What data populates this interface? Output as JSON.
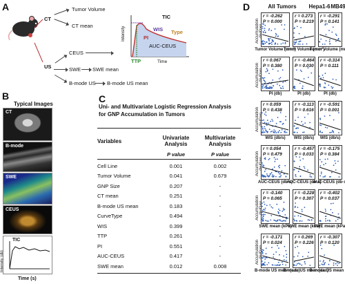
{
  "panels": {
    "a": "A",
    "b": "B",
    "c": "C",
    "d": "D"
  },
  "panel_a": {
    "ct": "CT",
    "us": "US",
    "tumor_volume": "Tumor Volume",
    "ct_mean": "CT mean",
    "ceus": "CEUS",
    "swe": "SWE",
    "swe_mean": "SWE mean",
    "bmode_us": "B-mode US",
    "bmode_us_mean": "B-mode US mean",
    "curve": {
      "tic": "TIC",
      "wis": "WIS",
      "type": "Type",
      "pi": "PI",
      "auc": "AUC-CEUS",
      "ttp": "TTP",
      "intensity": "Intensity",
      "time": "Time"
    }
  },
  "panel_b": {
    "title": "Typical Images",
    "images": [
      "CT",
      "B-mode",
      "SWE",
      "CEUS"
    ],
    "tic_label": "TIC",
    "ylabel": "Intensity (db)",
    "xlabel": "Time (s)"
  },
  "panel_c": {
    "title": "Uni- and Multivariate Logistic Regression Analysis for GNP Accumulation in Tumors",
    "col_variables": "Variables",
    "col_uni": "Univariate Analysis",
    "col_multi": "Multivariate Analysis",
    "pvalue": "P value",
    "rows": [
      {
        "v": "Cell Line",
        "uni": "0.001",
        "multi": "0.002"
      },
      {
        "v": "Tumor Volume",
        "uni": "0.041",
        "multi": "0.679"
      },
      {
        "v": "GNP Size",
        "uni": "0.207",
        "multi": "-"
      },
      {
        "v": "CT mean",
        "uni": "0.251",
        "multi": "-"
      },
      {
        "v": "B-mode US mean",
        "uni": "0.183",
        "multi": "-"
      },
      {
        "v": "CurveType",
        "uni": "0.494",
        "multi": "-"
      },
      {
        "v": "WIS",
        "uni": "0.399",
        "multi": "-"
      },
      {
        "v": "TTP",
        "uni": "0.261",
        "multi": "-"
      },
      {
        "v": "PI",
        "uni": "0.551",
        "multi": "-"
      },
      {
        "v": "AUC-CEUS",
        "uni": "0.417",
        "multi": "-"
      },
      {
        "v": "SWE mean",
        "uni": "0.012",
        "multi": "0.008"
      }
    ]
  },
  "panel_d": {
    "columns": [
      "All Tumors",
      "Hepa1-6",
      "MB49"
    ],
    "ylabel": "Accumulation (%ID/g)",
    "rows": [
      {
        "x": "Tumor Volume (mm³)",
        "stats": [
          [
            "r = -0.262",
            "P = 0.000"
          ],
          [
            "r = 0.273",
            "P = 0.219"
          ],
          [
            "r = -0.291",
            "P = 0.141"
          ]
        ]
      },
      {
        "x": "PI (db)",
        "stats": [
          [
            "r = 0.067",
            "P = 0.380"
          ],
          [
            "r = -0.464",
            "P = 0.030"
          ],
          [
            "r = -0.314",
            "P = 0.111"
          ]
        ]
      },
      {
        "x": "WIS (db/s)",
        "stats": [
          [
            "r = 0.059",
            "P = 0.438"
          ],
          [
            "r = -0.113",
            "P = 0.616"
          ],
          [
            "r = -0.591",
            "P = 0.001"
          ]
        ]
      },
      {
        "x": "AUC-CEUS (db·s)",
        "stats": [
          [
            "r = 0.054",
            "P = 0.479"
          ],
          [
            "r = -0.457",
            "P = 0.033"
          ],
          [
            "r = -0.175",
            "P = 0.384"
          ]
        ]
      },
      {
        "x": "SWE mean (kPa)",
        "stats": [
          [
            "r = -0.140",
            "P = 0.065"
          ],
          [
            "r = -0.228",
            "P = 0.307"
          ],
          [
            "r = -0.402",
            "P = 0.037"
          ]
        ]
      },
      {
        "x": "B-mode US mean (a.u.)",
        "stats": [
          [
            "r = -0.171",
            "P = 0.024"
          ],
          [
            "r = 0.269",
            "P = 0.226"
          ],
          [
            "r = -0.307",
            "P = 0.120"
          ]
        ]
      }
    ]
  }
}
